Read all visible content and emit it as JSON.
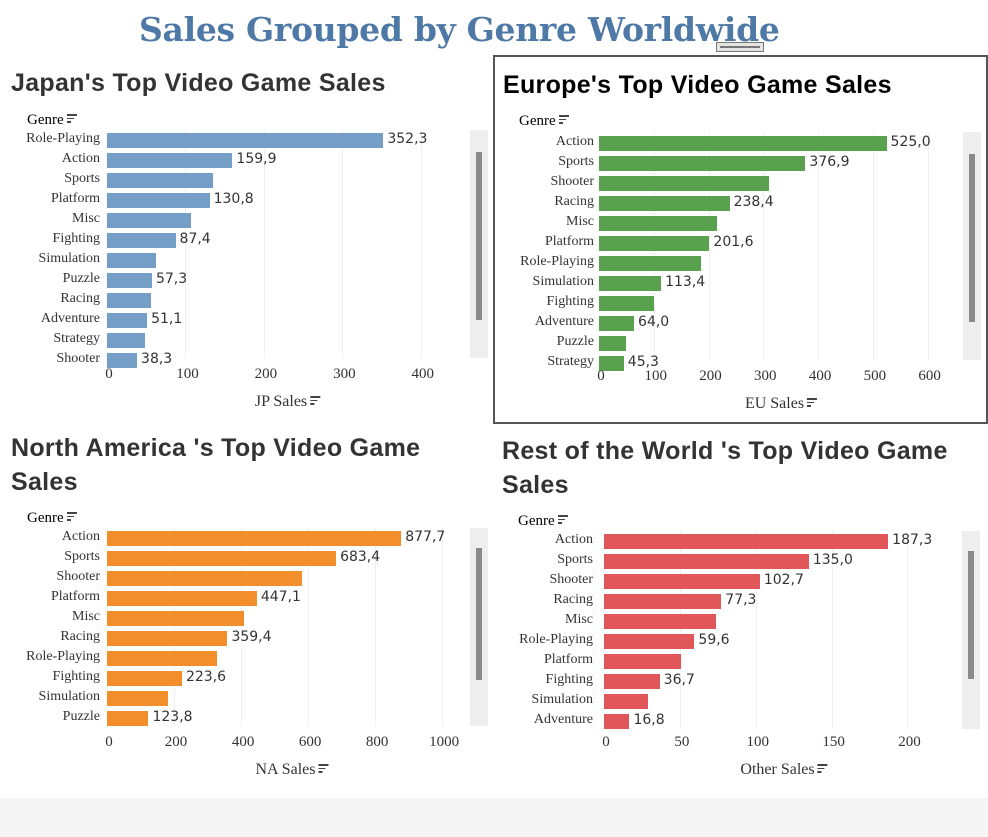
{
  "dashboard": {
    "title": "Sales Grouped by Genre Worldwide"
  },
  "chart_data": [
    {
      "id": "jp",
      "type": "bar",
      "title": "Japan's Top Video Game Sales",
      "ylabel": "Genre",
      "xlabel": "JP Sales",
      "xlim": [
        0,
        450
      ],
      "ticks": [
        "0",
        "100",
        "200",
        "300",
        "400"
      ],
      "color": "#759ec7",
      "categories": [
        "Role-Playing",
        "Action",
        "Sports",
        "Platform",
        "Misc",
        "Fighting",
        "Simulation",
        "Puzzle",
        "Racing",
        "Adventure",
        "Strategy",
        "Shooter"
      ],
      "values": [
        352.3,
        159.9,
        135.0,
        130.8,
        107.0,
        87.4,
        63.0,
        57.3,
        56.0,
        51.1,
        49.0,
        38.3
      ],
      "value_labels": [
        "352,3",
        "159,9",
        "",
        "130,8",
        "",
        "87,4",
        "",
        "57,3",
        "",
        "51,1",
        "",
        "38,3"
      ]
    },
    {
      "id": "eu",
      "type": "bar",
      "title": "Europe's Top Video Game  Sales",
      "ylabel": "Genre",
      "xlabel": "EU Sales",
      "xlim": [
        0,
        650
      ],
      "ticks": [
        "0",
        "100",
        "200",
        "300",
        "400",
        "500",
        "600"
      ],
      "color": "#59a14f",
      "categories": [
        "Action",
        "Sports",
        "Shooter",
        "Racing",
        "Misc",
        "Platform",
        "Role-Playing",
        "Simulation",
        "Fighting",
        "Adventure",
        "Puzzle",
        "Strategy"
      ],
      "values": [
        525.0,
        376.9,
        310.0,
        238.4,
        215.0,
        201.6,
        187.0,
        113.4,
        101.0,
        64.0,
        50.0,
        45.3
      ],
      "value_labels": [
        "525,0",
        "376,9",
        "",
        "238,4",
        "",
        "201,6",
        "",
        "113,4",
        "",
        "64,0",
        "",
        "45,3"
      ]
    },
    {
      "id": "na",
      "type": "bar",
      "title": "North America 's Top Video Game Sales",
      "ylabel": "Genre",
      "xlabel": "NA Sales",
      "xlim": [
        0,
        1080
      ],
      "ticks": [
        "0",
        "200",
        "400",
        "600",
        "800",
        "1000"
      ],
      "color": "#f28e2b",
      "categories": [
        "Action",
        "Sports",
        "Shooter",
        "Platform",
        "Misc",
        "Racing",
        "Role-Playing",
        "Fighting",
        "Simulation",
        "Puzzle"
      ],
      "values": [
        877.7,
        683.4,
        582.0,
        447.1,
        410.0,
        359.4,
        327.0,
        223.6,
        183.0,
        123.8
      ],
      "value_labels": [
        "877,7",
        "683,4",
        "",
        "447,1",
        "",
        "359,4",
        "",
        "223,6",
        "",
        "123,8"
      ]
    },
    {
      "id": "other",
      "type": "bar",
      "title": "Rest of the World 's Top Video Game Sales",
      "ylabel": "Genre",
      "xlabel": "Other Sales",
      "xlim": [
        0,
        232
      ],
      "ticks": [
        "0",
        "50",
        "100",
        "150",
        "200"
      ],
      "color": "#e15759",
      "categories": [
        "Action",
        "Sports",
        "Shooter",
        "Racing",
        "Misc",
        "Role-Playing",
        "Platform",
        "Fighting",
        "Simulation",
        "Adventure"
      ],
      "values": [
        187.3,
        135.0,
        102.7,
        77.3,
        74.0,
        59.6,
        51.0,
        36.7,
        29.0,
        16.8
      ],
      "value_labels": [
        "187,3",
        "135,0",
        "102,7",
        "77,3",
        "",
        "59,6",
        "",
        "36,7",
        "",
        "16,8"
      ]
    }
  ]
}
